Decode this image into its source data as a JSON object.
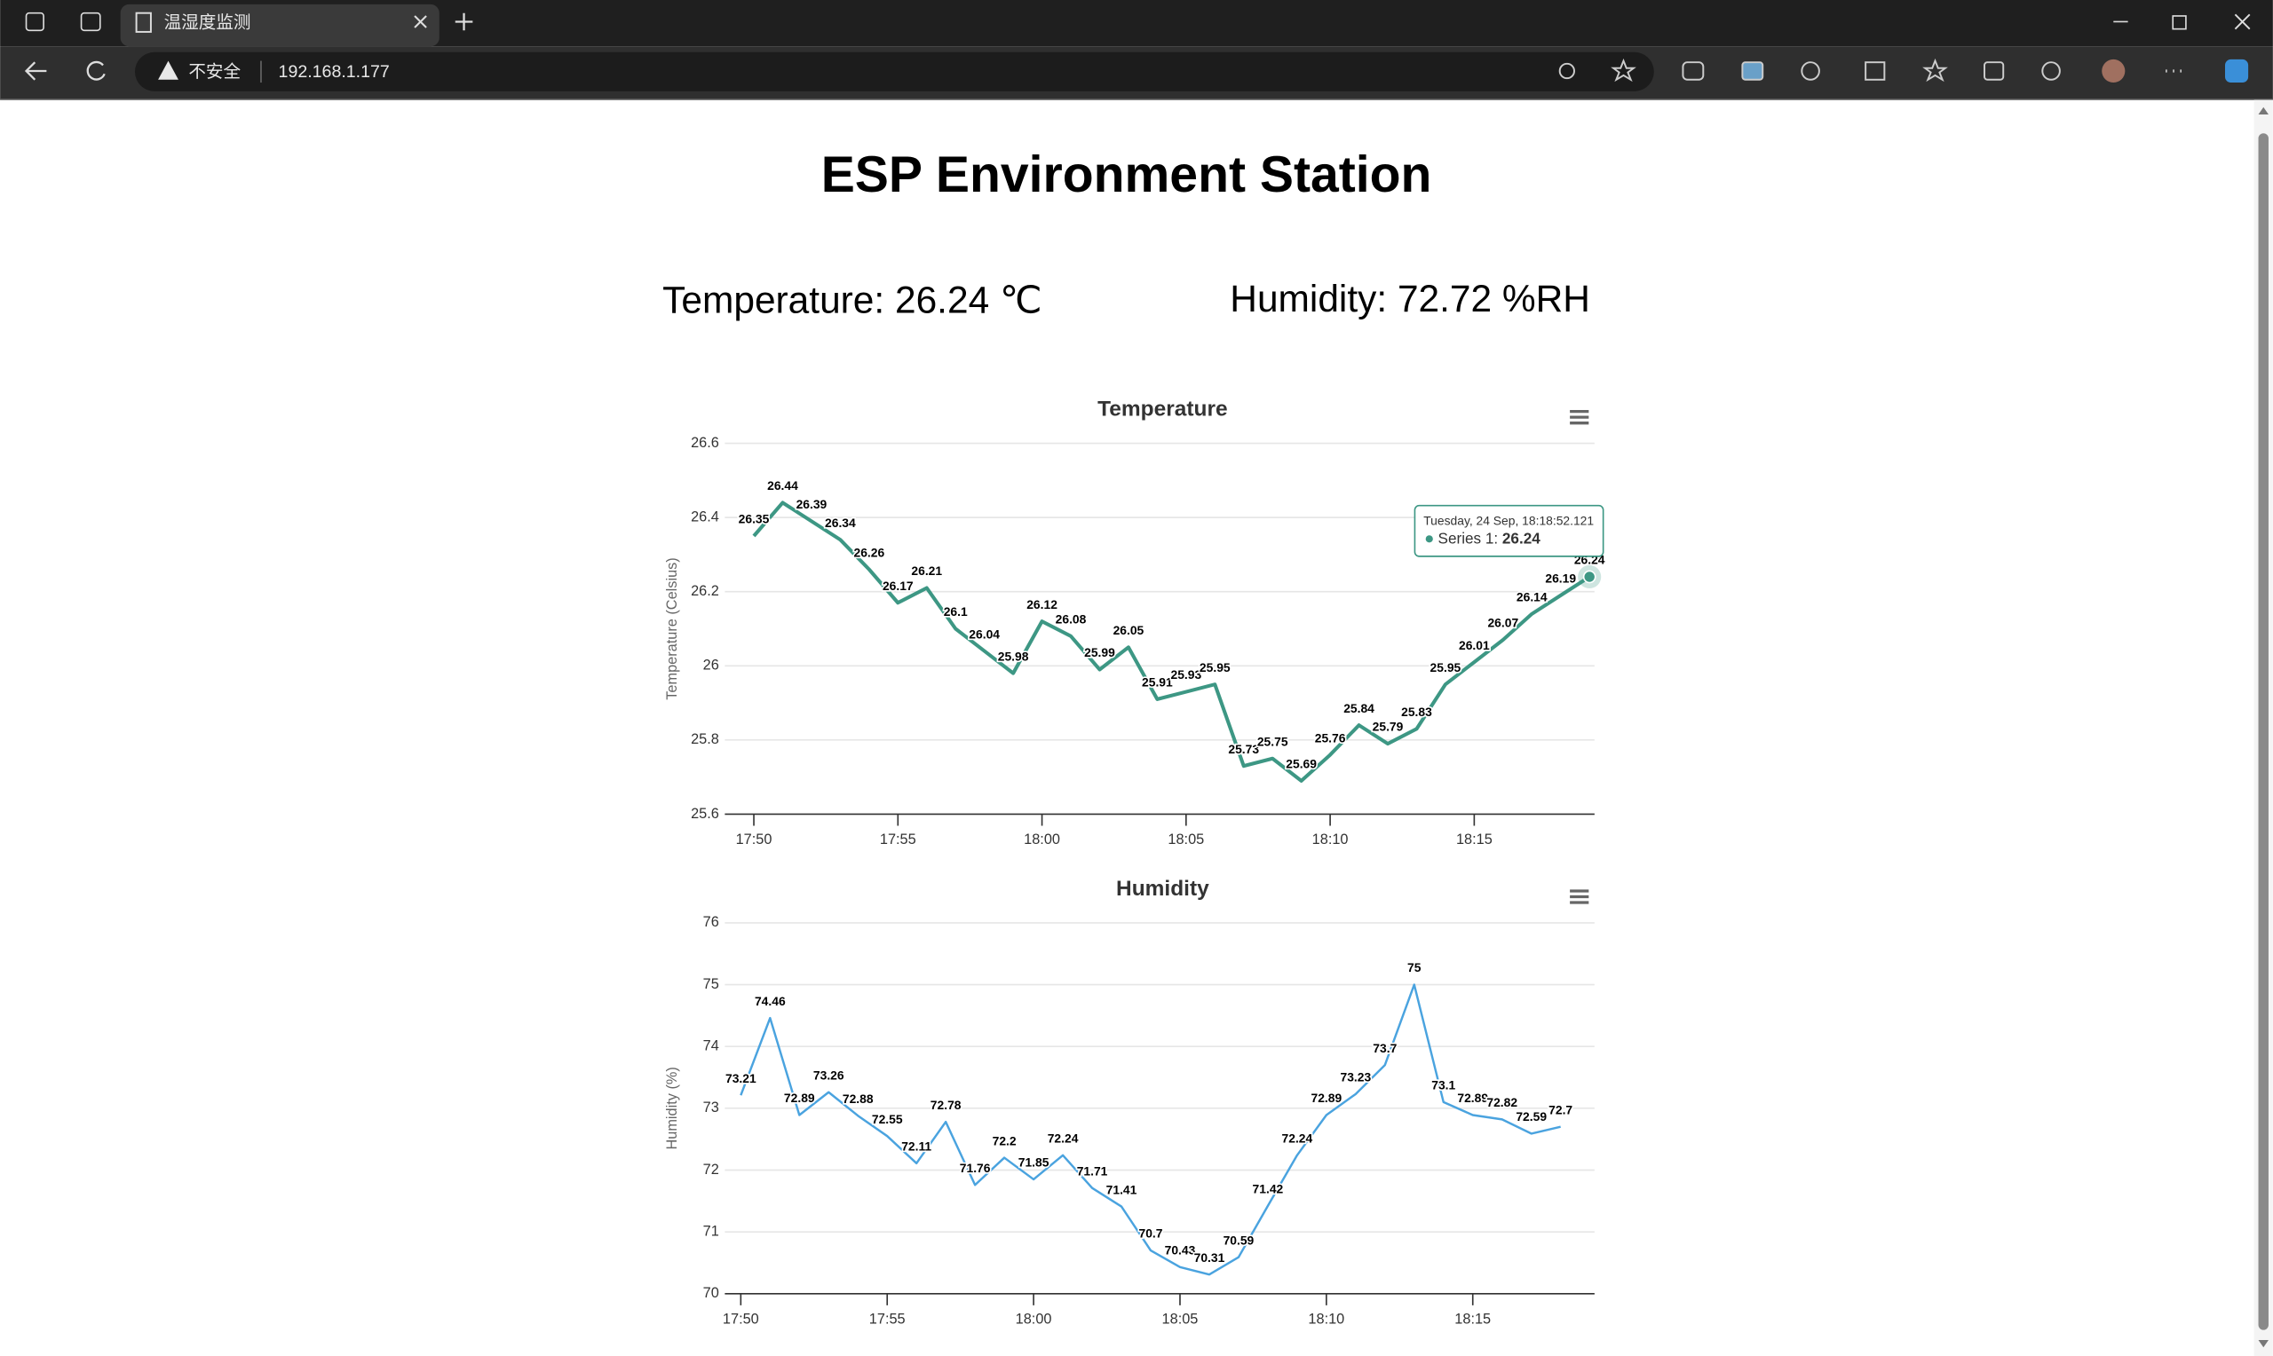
{
  "browser": {
    "tab_title": "温湿度监测",
    "security": "不安全",
    "url": "192.168.1.177"
  },
  "page": {
    "heading": "ESP Environment Station",
    "temperature_label": "Temperature: 26.24 ℃",
    "humidity_label": "Humidity: 72.72 %RH"
  },
  "chart_data": [
    {
      "type": "line",
      "title": "Temperature",
      "y_label": "Temperature (Celsius)",
      "x": [
        "17:50",
        "17:51",
        "17:52",
        "17:53",
        "17:54",
        "17:55",
        "17:56",
        "17:57",
        "17:58",
        "17:59",
        "18:00",
        "18:01",
        "18:02",
        "18:03",
        "18:04",
        "18:05",
        "18:06",
        "18:07",
        "18:08",
        "18:09",
        "18:10",
        "18:11",
        "18:12",
        "18:13",
        "18:14",
        "18:15",
        "18:16",
        "18:17",
        "18:18",
        "18:19"
      ],
      "series": [
        {
          "name": "Series 1",
          "color": "#3d9784",
          "values": [
            26.35,
            26.44,
            26.39,
            26.34,
            26.26,
            26.17,
            26.21,
            26.1,
            26.04,
            25.98,
            26.12,
            26.08,
            25.99,
            26.05,
            25.91,
            25.93,
            25.95,
            25.73,
            25.75,
            25.69,
            25.76,
            25.84,
            25.79,
            25.83,
            25.95,
            26.01,
            26.07,
            26.14,
            26.19,
            26.24
          ]
        }
      ],
      "xticks": [
        "17:50",
        "17:55",
        "18:00",
        "18:05",
        "18:10",
        "18:15"
      ],
      "ylim": [
        25.6,
        26.6
      ],
      "yticks": [
        25.6,
        25.8,
        26,
        26.2,
        26.4,
        26.6
      ],
      "grid": true,
      "tooltip": {
        "header": "Tuesday, 24 Sep, 18:18:52.121",
        "label": "Series 1:"
      }
    },
    {
      "type": "line",
      "title": "Humidity",
      "y_label": "Humidity (%)",
      "x": [
        "17:50",
        "17:51",
        "17:52",
        "17:53",
        "17:54",
        "17:55",
        "17:56",
        "17:57",
        "17:58",
        "17:59",
        "18:00",
        "18:01",
        "18:02",
        "18:03",
        "18:04",
        "18:05",
        "18:06",
        "18:07",
        "18:08",
        "18:09",
        "18:10",
        "18:11",
        "18:12",
        "18:13",
        "18:14",
        "18:15",
        "18:16",
        "18:17",
        "18:18"
      ],
      "series": [
        {
          "name": "Series 1",
          "color": "#4aa3df",
          "values": [
            73.21,
            74.46,
            72.89,
            73.26,
            72.88,
            72.55,
            72.11,
            72.78,
            71.76,
            72.2,
            71.85,
            72.24,
            71.71,
            71.41,
            70.7,
            70.43,
            70.31,
            70.59,
            71.42,
            72.24,
            72.89,
            73.23,
            73.7,
            75,
            73.1,
            72.89,
            72.82,
            72.59,
            72.7
          ]
        }
      ],
      "xticks": [
        "17:50",
        "17:55",
        "18:00",
        "18:05",
        "18:10",
        "18:15"
      ],
      "ylim": [
        70,
        76
      ],
      "yticks": [
        70,
        71,
        72,
        73,
        74,
        75,
        76
      ],
      "grid": true
    }
  ]
}
